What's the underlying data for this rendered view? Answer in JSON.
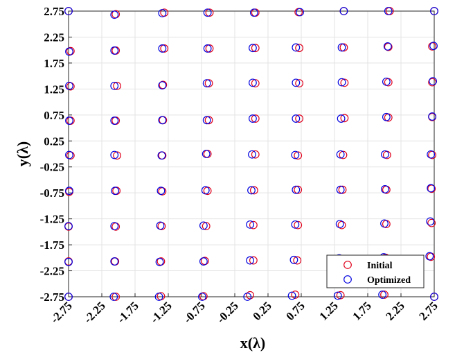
{
  "chart_data": {
    "type": "scatter",
    "title": "",
    "xlabel": "x(λ)",
    "ylabel": "y(λ)",
    "xlim": [
      -2.75,
      2.75
    ],
    "ylim": [
      -2.75,
      2.75
    ],
    "xticks": [
      "-2.75",
      "-2.25",
      "-1.75",
      "-1.25",
      "-0.75",
      "-0.25",
      "0.25",
      "0.75",
      "1.25",
      "1.75",
      "2.25",
      "2.75"
    ],
    "yticks": [
      "2.75",
      "2.25",
      "1.75",
      "1.25",
      "0.75",
      "0.25",
      "-0.25",
      "-0.75",
      "-1.25",
      "-1.75",
      "-2.25",
      "-2.75"
    ],
    "grid": true,
    "legend_position": "bottom-right",
    "marker": "open-circle",
    "series": [
      {
        "name": "Initial",
        "color": "#e0001b",
        "points": [
          [
            -2.75,
            2.75
          ],
          [
            -2.04,
            2.69
          ],
          [
            -1.31,
            2.72
          ],
          [
            -0.63,
            2.72
          ],
          [
            0.06,
            2.72
          ],
          [
            0.71,
            2.73
          ],
          [
            1.39,
            2.75
          ],
          [
            2.08,
            2.75
          ],
          [
            2.75,
            2.75
          ],
          [
            -2.72,
            1.98
          ],
          [
            -2.04,
            1.99
          ],
          [
            -1.31,
            2.03
          ],
          [
            -0.63,
            2.03
          ],
          [
            0.06,
            2.04
          ],
          [
            0.72,
            2.04
          ],
          [
            1.39,
            2.05
          ],
          [
            2.06,
            2.06
          ],
          [
            2.72,
            2.07
          ],
          [
            -2.72,
            1.3
          ],
          [
            -2.02,
            1.31
          ],
          [
            -1.33,
            1.33
          ],
          [
            -0.64,
            1.36
          ],
          [
            0.06,
            1.36
          ],
          [
            0.72,
            1.36
          ],
          [
            1.4,
            1.37
          ],
          [
            2.06,
            1.38
          ],
          [
            2.72,
            1.38
          ],
          [
            -2.72,
            0.64
          ],
          [
            -2.04,
            0.64
          ],
          [
            -1.33,
            0.65
          ],
          [
            -0.64,
            0.65
          ],
          [
            0.06,
            0.68
          ],
          [
            0.72,
            0.68
          ],
          [
            1.4,
            0.69
          ],
          [
            2.06,
            0.7
          ],
          [
            2.72,
            0.71
          ],
          [
            -2.72,
            -0.03
          ],
          [
            -2.02,
            -0.03
          ],
          [
            -1.34,
            -0.03
          ],
          [
            -0.66,
            0.0
          ],
          [
            0.06,
            -0.01
          ],
          [
            0.7,
            -0.03
          ],
          [
            1.38,
            -0.02
          ],
          [
            2.04,
            -0.02
          ],
          [
            2.72,
            -0.02
          ],
          [
            -2.74,
            -0.73
          ],
          [
            -2.03,
            -0.71
          ],
          [
            -1.34,
            -0.72
          ],
          [
            -0.66,
            -0.71
          ],
          [
            0.04,
            -0.7
          ],
          [
            0.7,
            -0.69
          ],
          [
            1.37,
            -0.69
          ],
          [
            2.03,
            -0.69
          ],
          [
            2.71,
            -0.67
          ],
          [
            -2.75,
            -1.4
          ],
          [
            -2.04,
            -1.4
          ],
          [
            -1.35,
            -1.39
          ],
          [
            -0.68,
            -1.39
          ],
          [
            0.03,
            -1.37
          ],
          [
            0.7,
            -1.37
          ],
          [
            1.36,
            -1.37
          ],
          [
            2.03,
            -1.35
          ],
          [
            2.71,
            -1.33
          ],
          [
            -2.75,
            -2.07
          ],
          [
            -2.05,
            -2.07
          ],
          [
            -1.36,
            -2.07
          ],
          [
            -0.7,
            -2.06
          ],
          [
            0.03,
            -2.05
          ],
          [
            0.69,
            -2.05
          ],
          [
            1.35,
            -2.02
          ],
          [
            2.02,
            -2.0
          ],
          [
            2.7,
            -1.98
          ],
          [
            -2.75,
            -2.75
          ],
          [
            -2.04,
            -2.75
          ],
          [
            -1.36,
            -2.74
          ],
          [
            -0.72,
            -2.74
          ],
          [
            -0.02,
            -2.72
          ],
          [
            0.66,
            -2.71
          ],
          [
            1.34,
            -2.72
          ],
          [
            2.0,
            -2.71
          ],
          [
            2.75,
            -2.75
          ]
        ]
      },
      {
        "name": "Optimized",
        "color": "#0000e0",
        "points": [
          [
            -2.75,
            2.75
          ],
          [
            -2.06,
            2.68
          ],
          [
            -1.34,
            2.71
          ],
          [
            -0.66,
            2.72
          ],
          [
            0.04,
            2.72
          ],
          [
            0.73,
            2.73
          ],
          [
            1.39,
            2.75
          ],
          [
            2.06,
            2.75
          ],
          [
            2.75,
            2.75
          ],
          [
            -2.74,
            1.97
          ],
          [
            -2.06,
            1.99
          ],
          [
            -1.34,
            2.03
          ],
          [
            -0.66,
            2.03
          ],
          [
            0.02,
            2.04
          ],
          [
            0.67,
            2.05
          ],
          [
            1.36,
            2.05
          ],
          [
            2.05,
            2.07
          ],
          [
            2.74,
            2.08
          ],
          [
            -2.74,
            1.31
          ],
          [
            -2.06,
            1.31
          ],
          [
            -1.34,
            1.32
          ],
          [
            -0.67,
            1.36
          ],
          [
            0.02,
            1.37
          ],
          [
            0.67,
            1.37
          ],
          [
            1.36,
            1.38
          ],
          [
            2.03,
            1.39
          ],
          [
            2.73,
            1.4
          ],
          [
            -2.74,
            0.64
          ],
          [
            -2.06,
            0.64
          ],
          [
            -1.34,
            0.65
          ],
          [
            -0.67,
            0.65
          ],
          [
            0.02,
            0.68
          ],
          [
            0.67,
            0.68
          ],
          [
            1.35,
            0.68
          ],
          [
            2.03,
            0.71
          ],
          [
            2.72,
            0.72
          ],
          [
            -2.74,
            -0.02
          ],
          [
            -2.06,
            -0.02
          ],
          [
            -1.35,
            -0.03
          ],
          [
            -0.68,
            0.0
          ],
          [
            0.01,
            -0.01
          ],
          [
            0.66,
            -0.02
          ],
          [
            1.34,
            -0.01
          ],
          [
            2.01,
            -0.01
          ],
          [
            2.7,
            -0.01
          ],
          [
            -2.74,
            -0.71
          ],
          [
            -2.05,
            -0.71
          ],
          [
            -1.36,
            -0.71
          ],
          [
            -0.69,
            -0.7
          ],
          [
            0.0,
            -0.7
          ],
          [
            0.67,
            -0.69
          ],
          [
            1.34,
            -0.69
          ],
          [
            2.01,
            -0.68
          ],
          [
            2.7,
            -0.66
          ],
          [
            -2.75,
            -1.39
          ],
          [
            -2.06,
            -1.39
          ],
          [
            -1.37,
            -1.38
          ],
          [
            -0.72,
            -1.38
          ],
          [
            -0.02,
            -1.36
          ],
          [
            0.66,
            -1.36
          ],
          [
            1.33,
            -1.35
          ],
          [
            2.0,
            -1.34
          ],
          [
            2.69,
            -1.3
          ],
          [
            -2.75,
            -2.08
          ],
          [
            -2.06,
            -2.07
          ],
          [
            -1.38,
            -2.08
          ],
          [
            -0.72,
            -2.07
          ],
          [
            -0.02,
            -2.05
          ],
          [
            0.64,
            -2.04
          ],
          [
            1.32,
            -2.01
          ],
          [
            1.99,
            -1.99
          ],
          [
            2.68,
            -1.97
          ],
          [
            -2.75,
            -2.75
          ],
          [
            -2.07,
            -2.75
          ],
          [
            -1.39,
            -2.75
          ],
          [
            -0.74,
            -2.75
          ],
          [
            -0.06,
            -2.75
          ],
          [
            0.61,
            -2.73
          ],
          [
            1.3,
            -2.73
          ],
          [
            1.97,
            -2.71
          ],
          [
            2.75,
            -2.75
          ]
        ]
      }
    ]
  }
}
